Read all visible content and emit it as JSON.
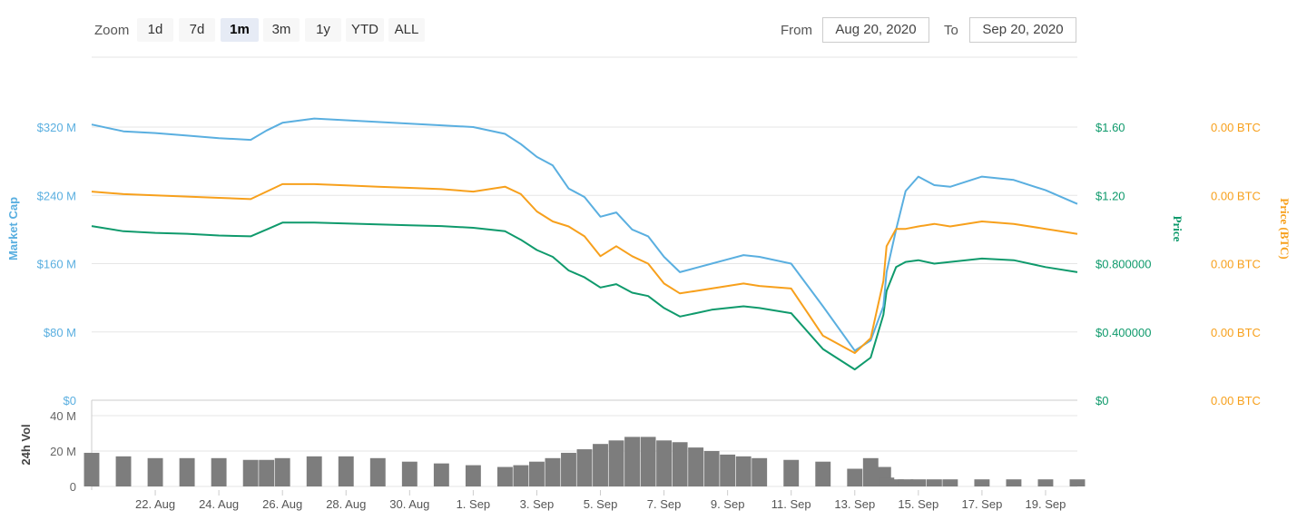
{
  "toolbar": {
    "zoom_label": "Zoom",
    "zoom_buttons": [
      "1d",
      "7d",
      "1m",
      "3m",
      "1y",
      "YTD",
      "ALL"
    ],
    "active_zoom": "1m",
    "from_label": "From",
    "from_value": "Aug 20, 2020",
    "to_label": "To",
    "to_value": "Sep 20, 2020"
  },
  "colors": {
    "market_cap": "#5aafe0",
    "price": "#0f9a6c",
    "price_btc": "#f7a01c",
    "volume": "#7d7d7d",
    "grid": "#e6e6e6"
  },
  "chart_data": {
    "type": "line",
    "x_tick_labels": [
      "22. Aug",
      "24. Aug",
      "26. Aug",
      "28. Aug",
      "30. Aug",
      "1. Sep",
      "3. Sep",
      "5. Sep",
      "7. Sep",
      "9. Sep",
      "11. Sep",
      "13. Sep",
      "15. Sep",
      "17. Sep",
      "19. Sep"
    ],
    "axes": {
      "market_cap": {
        "label": "Market Cap",
        "ticks": [
          "$0",
          "$80 M",
          "$160 M",
          "$240 M",
          "$320 M"
        ],
        "ylim": [
          0,
          320
        ]
      },
      "price": {
        "label": "Price",
        "ticks": [
          "$0",
          "$0.400000",
          "$0.800000",
          "$1.20",
          "$1.60"
        ],
        "ylim": [
          0,
          1.6
        ]
      },
      "price_btc": {
        "label": "Price (BTC)",
        "ticks": [
          "0.00 BTC",
          "0.00 BTC",
          "0.00 BTC",
          "0.00 BTC",
          "0.00 BTC"
        ]
      },
      "volume": {
        "label": "24h Vol",
        "ticks": [
          "0",
          "20 M",
          "40 M"
        ],
        "ylim": [
          0,
          40
        ]
      }
    },
    "grid": true,
    "x": [
      20.0,
      21.0,
      22.0,
      23.0,
      24.0,
      25.0,
      25.5,
      26.0,
      27.0,
      28.0,
      29.0,
      30.0,
      31.0,
      32.0,
      33.0,
      33.5,
      34.0,
      34.5,
      35.0,
      35.5,
      36.0,
      36.5,
      37.0,
      37.5,
      38.0,
      38.5,
      39.0,
      39.5,
      40.0,
      40.5,
      41.0,
      42.0,
      43.0,
      44.0,
      44.5,
      44.9,
      45.0,
      45.3,
      45.6,
      46.0,
      46.5,
      47.0,
      48.0,
      49.0,
      50.0,
      51.0
    ],
    "series": [
      {
        "name": "Market Cap",
        "unit": "M USD",
        "values": [
          323,
          315,
          313,
          310,
          307,
          305,
          316,
          325,
          330,
          328,
          326,
          324,
          322,
          320,
          312,
          300,
          285,
          275,
          248,
          238,
          215,
          220,
          200,
          192,
          168,
          150,
          155,
          160,
          165,
          170,
          168,
          160,
          110,
          58,
          70,
          110,
          150,
          200,
          245,
          262,
          252,
          250,
          262,
          258,
          246,
          230
        ]
      },
      {
        "name": "Price",
        "unit": "USD",
        "values": [
          1.02,
          0.99,
          0.98,
          0.975,
          0.965,
          0.96,
          1.0,
          1.04,
          1.04,
          1.035,
          1.03,
          1.025,
          1.02,
          1.01,
          0.99,
          0.94,
          0.88,
          0.84,
          0.76,
          0.72,
          0.66,
          0.68,
          0.63,
          0.61,
          0.54,
          0.49,
          0.51,
          0.53,
          0.54,
          0.55,
          0.54,
          0.51,
          0.3,
          0.18,
          0.25,
          0.5,
          0.64,
          0.78,
          0.81,
          0.82,
          0.8,
          0.81,
          0.83,
          0.82,
          0.78,
          0.75
        ]
      },
      {
        "name": "Price (BTC)",
        "unit": "relative",
        "values": [
          0.84,
          0.83,
          0.825,
          0.82,
          0.815,
          0.81,
          0.84,
          0.87,
          0.87,
          0.865,
          0.86,
          0.855,
          0.85,
          0.84,
          0.86,
          0.83,
          0.76,
          0.72,
          0.7,
          0.66,
          0.58,
          0.62,
          0.58,
          0.55,
          0.47,
          0.43,
          0.44,
          0.45,
          0.46,
          0.47,
          0.46,
          0.45,
          0.26,
          0.19,
          0.25,
          0.48,
          0.62,
          0.69,
          0.69,
          0.7,
          0.71,
          0.7,
          0.72,
          0.71,
          0.69,
          0.67
        ]
      },
      {
        "name": "24h Vol",
        "unit": "M USD",
        "values": [
          19,
          17,
          16,
          16,
          16,
          15,
          15,
          16,
          17,
          17,
          16,
          14,
          13,
          12,
          11,
          12,
          14,
          16,
          19,
          21,
          24,
          26,
          28,
          28,
          26,
          25,
          22,
          20,
          18,
          17,
          16,
          15,
          14,
          10,
          16,
          11,
          5,
          4,
          4,
          4,
          4,
          4,
          4,
          4,
          4,
          4
        ]
      }
    ]
  }
}
